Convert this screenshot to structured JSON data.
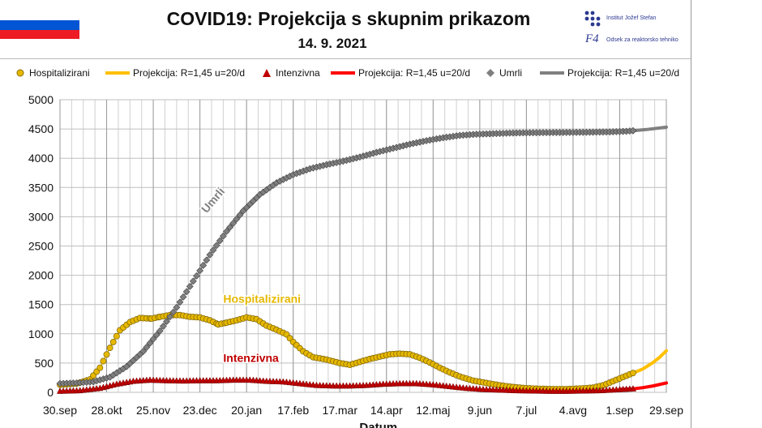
{
  "header": {
    "title": "COVID19: Projekcija s skupnim prikazom",
    "date": "14. 9. 2021",
    "flag_colors": [
      "#ffffff",
      "#0055d4",
      "#ed1c24"
    ]
  },
  "logos": {
    "ijs_text": "Institut Jožef Stefan",
    "f4_mark": "F4",
    "f4_text": "Odsek za reaktorsko tehniko"
  },
  "legend": [
    {
      "label": "Hospitalizirani",
      "kind": "marker",
      "shape": "circle",
      "color": "#e6b800"
    },
    {
      "label": "Projekcija: R=1,45 u=20/d",
      "kind": "line",
      "color": "#ffc000"
    },
    {
      "label": "Intenzivna",
      "kind": "marker",
      "shape": "triangle",
      "color": "#c00000"
    },
    {
      "label": "Projekcija: R=1,45 u=20/d",
      "kind": "line",
      "color": "#ff0000"
    },
    {
      "label": "Umrli",
      "kind": "marker",
      "shape": "diamond",
      "color": "#7f7f7f"
    },
    {
      "label": "Projekcija: R=1,45 u=20/d",
      "kind": "line",
      "color": "#808080"
    }
  ],
  "chart_data": {
    "type": "line",
    "title": "COVID19: Projekcija s skupnim prikazom",
    "xlabel": "Datum",
    "ylabel": "",
    "ylim": [
      0,
      5000
    ],
    "yticks": [
      0,
      500,
      1000,
      1500,
      2000,
      2500,
      3000,
      3500,
      4000,
      4500,
      5000
    ],
    "xlim": [
      0,
      364
    ],
    "xticks": [
      {
        "day": 0,
        "label": "30.sep"
      },
      {
        "day": 28,
        "label": "28.okt"
      },
      {
        "day": 56,
        "label": "25.nov"
      },
      {
        "day": 84,
        "label": "23.dec"
      },
      {
        "day": 112,
        "label": "20.jan"
      },
      {
        "day": 140,
        "label": "17.feb"
      },
      {
        "day": 168,
        "label": "17.mar"
      },
      {
        "day": 196,
        "label": "14.apr"
      },
      {
        "day": 224,
        "label": "12.maj"
      },
      {
        "day": 252,
        "label": "9.jun"
      },
      {
        "day": 280,
        "label": "7.jul"
      },
      {
        "day": 308,
        "label": "4.avg"
      },
      {
        "day": 336,
        "label": "1.sep"
      },
      {
        "day": 364,
        "label": "29.sep"
      }
    ],
    "grid": true,
    "series": [
      {
        "name": "Hospitalizirani",
        "kind": "markers",
        "shape": "circle",
        "color": "#e6b800",
        "points": [
          [
            0,
            130
          ],
          [
            10,
            150
          ],
          [
            18,
            220
          ],
          [
            24,
            420
          ],
          [
            30,
            760
          ],
          [
            36,
            1060
          ],
          [
            42,
            1200
          ],
          [
            48,
            1270
          ],
          [
            55,
            1260
          ],
          [
            60,
            1290
          ],
          [
            66,
            1320
          ],
          [
            72,
            1320
          ],
          [
            78,
            1290
          ],
          [
            84,
            1280
          ],
          [
            90,
            1230
          ],
          [
            95,
            1160
          ],
          [
            100,
            1190
          ],
          [
            106,
            1230
          ],
          [
            112,
            1280
          ],
          [
            118,
            1250
          ],
          [
            124,
            1140
          ],
          [
            130,
            1070
          ],
          [
            136,
            990
          ],
          [
            140,
            860
          ],
          [
            146,
            700
          ],
          [
            152,
            600
          ],
          [
            160,
            560
          ],
          [
            168,
            500
          ],
          [
            174,
            470
          ],
          [
            180,
            520
          ],
          [
            186,
            570
          ],
          [
            192,
            610
          ],
          [
            198,
            650
          ],
          [
            204,
            660
          ],
          [
            210,
            650
          ],
          [
            216,
            590
          ],
          [
            222,
            510
          ],
          [
            228,
            420
          ],
          [
            234,
            340
          ],
          [
            240,
            270
          ],
          [
            248,
            200
          ],
          [
            256,
            160
          ],
          [
            264,
            120
          ],
          [
            272,
            90
          ],
          [
            280,
            70
          ],
          [
            288,
            60
          ],
          [
            296,
            55
          ],
          [
            304,
            55
          ],
          [
            312,
            65
          ],
          [
            320,
            80
          ],
          [
            326,
            120
          ],
          [
            332,
            190
          ],
          [
            338,
            260
          ],
          [
            344,
            330
          ]
        ]
      },
      {
        "name": "Projekcija Hospitalizirani",
        "kind": "line",
        "color": "#ffc000",
        "points": [
          [
            336,
            250
          ],
          [
            340,
            300
          ],
          [
            344,
            330
          ],
          [
            350,
            400
          ],
          [
            356,
            510
          ],
          [
            360,
            600
          ],
          [
            364,
            710
          ]
        ]
      },
      {
        "name": "Intenzivna",
        "kind": "markers",
        "shape": "triangle",
        "color": "#c00000",
        "points": [
          [
            0,
            20
          ],
          [
            12,
            30
          ],
          [
            24,
            70
          ],
          [
            34,
            140
          ],
          [
            44,
            190
          ],
          [
            54,
            210
          ],
          [
            64,
            200
          ],
          [
            74,
            195
          ],
          [
            84,
            200
          ],
          [
            94,
            200
          ],
          [
            104,
            210
          ],
          [
            114,
            210
          ],
          [
            124,
            190
          ],
          [
            134,
            180
          ],
          [
            144,
            150
          ],
          [
            154,
            120
          ],
          [
            164,
            110
          ],
          [
            174,
            110
          ],
          [
            184,
            120
          ],
          [
            194,
            140
          ],
          [
            204,
            150
          ],
          [
            214,
            150
          ],
          [
            224,
            130
          ],
          [
            234,
            100
          ],
          [
            244,
            70
          ],
          [
            254,
            50
          ],
          [
            264,
            40
          ],
          [
            274,
            30
          ],
          [
            284,
            25
          ],
          [
            294,
            20
          ],
          [
            304,
            20
          ],
          [
            314,
            25
          ],
          [
            324,
            30
          ],
          [
            334,
            45
          ],
          [
            344,
            60
          ]
        ]
      },
      {
        "name": "Projekcija Intenzivna",
        "kind": "line",
        "color": "#ff0000",
        "points": [
          [
            336,
            50
          ],
          [
            344,
            60
          ],
          [
            350,
            80
          ],
          [
            356,
            110
          ],
          [
            364,
            160
          ]
        ]
      },
      {
        "name": "Umrli",
        "kind": "markers",
        "shape": "diamond",
        "color": "#7f7f7f",
        "points": [
          [
            0,
            150
          ],
          [
            10,
            160
          ],
          [
            20,
            180
          ],
          [
            30,
            260
          ],
          [
            40,
            440
          ],
          [
            50,
            700
          ],
          [
            60,
            1050
          ],
          [
            70,
            1450
          ],
          [
            80,
            1900
          ],
          [
            90,
            2350
          ],
          [
            100,
            2750
          ],
          [
            110,
            3100
          ],
          [
            120,
            3380
          ],
          [
            130,
            3580
          ],
          [
            140,
            3720
          ],
          [
            150,
            3820
          ],
          [
            160,
            3890
          ],
          [
            170,
            3950
          ],
          [
            180,
            4020
          ],
          [
            190,
            4100
          ],
          [
            200,
            4170
          ],
          [
            210,
            4240
          ],
          [
            220,
            4300
          ],
          [
            230,
            4350
          ],
          [
            240,
            4390
          ],
          [
            250,
            4410
          ],
          [
            260,
            4420
          ],
          [
            270,
            4430
          ],
          [
            280,
            4435
          ],
          [
            290,
            4438
          ],
          [
            300,
            4440
          ],
          [
            310,
            4442
          ],
          [
            320,
            4445
          ],
          [
            330,
            4450
          ],
          [
            340,
            4460
          ],
          [
            344,
            4470
          ]
        ]
      },
      {
        "name": "Projekcija Umrli",
        "kind": "line",
        "color": "#808080",
        "points": [
          [
            336,
            4455
          ],
          [
            344,
            4470
          ],
          [
            352,
            4490
          ],
          [
            364,
            4530
          ]
        ]
      }
    ],
    "annotations": [
      {
        "text": "Umrli",
        "color": "#7f7f7f",
        "day": 88,
        "value": 3050,
        "rotate": -50
      },
      {
        "text": "Hospitalizirani",
        "color": "#e6b800",
        "day": 98,
        "value": 1530
      },
      {
        "text": "Intenzivna",
        "color": "#c00000",
        "day": 98,
        "value": 520
      }
    ]
  }
}
